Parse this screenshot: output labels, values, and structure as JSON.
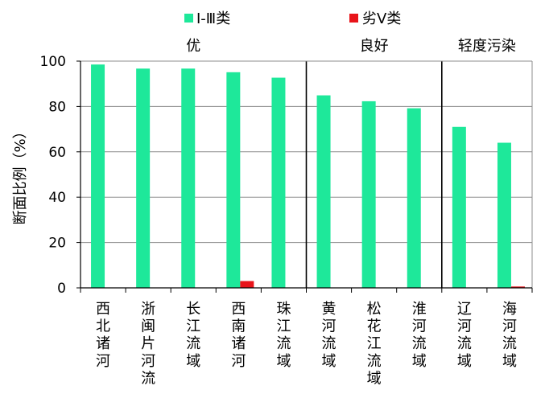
{
  "chart_data": {
    "type": "bar",
    "ylabel": "断面比例（%）",
    "ylim": [
      0,
      100
    ],
    "yticks": [
      0,
      20,
      40,
      60,
      80,
      100
    ],
    "grid": true,
    "legend_position": "top-center",
    "categories": [
      "西北诸河",
      "浙闽片河流",
      "长江流域",
      "西南诸河",
      "珠江流域",
      "黄河流域",
      "松花江流域",
      "淮河流域",
      "辽河流域",
      "海河流域"
    ],
    "series": [
      {
        "name": "Ⅰ-Ⅲ类",
        "color": "#1ee89a",
        "values": [
          98.5,
          96.7,
          96.7,
          95.1,
          92.7,
          84.9,
          82.3,
          79.2,
          71.0,
          64.0
        ]
      },
      {
        "name": "劣Ⅴ类",
        "color": "#e8141a",
        "values": [
          0,
          0,
          0,
          3.0,
          0,
          0,
          0,
          0,
          0,
          0.6
        ]
      }
    ],
    "groups": [
      {
        "label": "优",
        "categories": [
          "西北诸河",
          "浙闽片河流",
          "长江流域",
          "西南诸河",
          "珠江流域"
        ]
      },
      {
        "label": "良好",
        "categories": [
          "黄河流域",
          "松花江流域",
          "淮河流域"
        ]
      },
      {
        "label": "轻度污染",
        "categories": [
          "辽河流域",
          "海河流域"
        ]
      }
    ]
  }
}
